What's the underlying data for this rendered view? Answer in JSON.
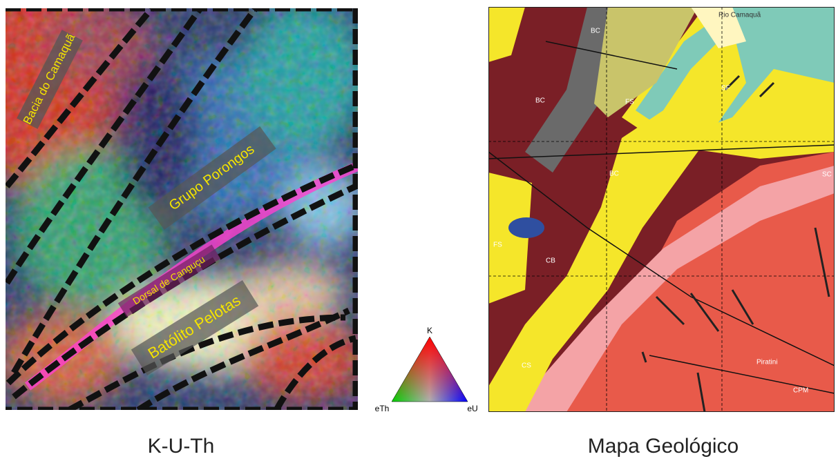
{
  "left_panel": {
    "labels": [
      "Bacia do Camaquã",
      "Grupo Porongos",
      "Dorsal de Canguçu",
      "Batólito Pelotas"
    ],
    "caption": "K-U-Th"
  },
  "legend": {
    "top": "K",
    "left": "eTh",
    "right": "eU"
  },
  "right_panel": {
    "labels": [
      "Rio Camaquã",
      "BC",
      "BC",
      "BC",
      "FS",
      "FS",
      "SF",
      "SC",
      "CB",
      "CS",
      "Piratini",
      "CPM"
    ],
    "caption": "Mapa Geológico"
  }
}
